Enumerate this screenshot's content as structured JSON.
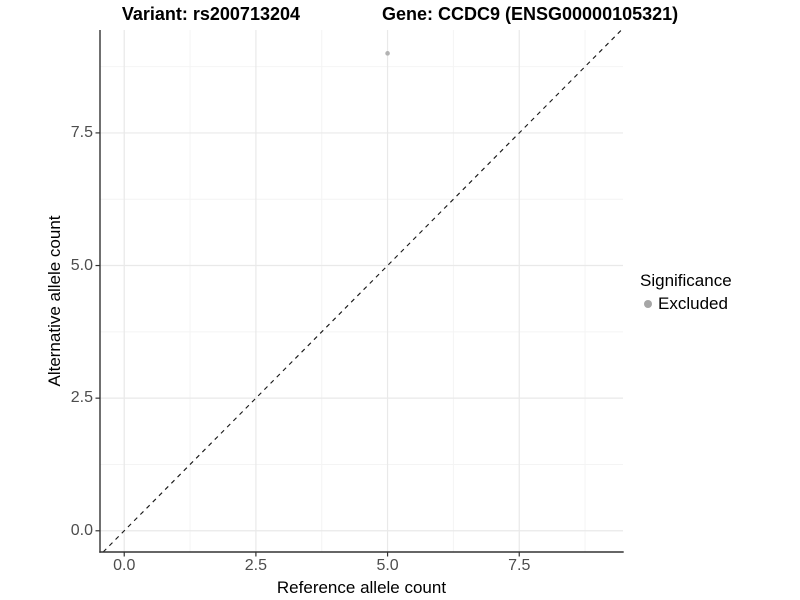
{
  "title": {
    "left": "Variant: rs200713204",
    "right": "Gene: CCDC9 (ENSG00000105321)"
  },
  "axes": {
    "x": {
      "label": "Reference allele count",
      "tick_labels": [
        "0.0",
        "2.5",
        "5.0",
        "7.5"
      ]
    },
    "y": {
      "label": "Alternative allele count",
      "tick_labels": [
        "0.0",
        "2.5",
        "5.0",
        "7.5"
      ]
    }
  },
  "legend": {
    "title": "Significance",
    "items": [
      {
        "label": "Excluded",
        "color": "#a6a6a6"
      }
    ]
  },
  "colors": {
    "point": "#b3b3b3",
    "grid_major": "#e9e9e9",
    "grid_minor": "#f4f4f4",
    "axis_line": "#333333",
    "tick_mark": "#333333",
    "tick_text": "#4d4d4d",
    "reference_line": "#1a1a1a"
  },
  "chart_data": {
    "type": "scatter",
    "title": "Variant: rs200713204   Gene: CCDC9 (ENSG00000105321)",
    "xlabel": "Reference allele count",
    "ylabel": "Alternative allele count",
    "series": [
      {
        "name": "Excluded",
        "color": "#b3b3b3",
        "points": [
          {
            "x": 5,
            "y": 9
          }
        ]
      }
    ],
    "reference_line": {
      "type": "identity",
      "equation": "y = x",
      "style": "dashed",
      "color": "#1a1a1a"
    },
    "xlim": [
      -0.46,
      9.47
    ],
    "ylim": [
      -0.4,
      9.44
    ],
    "xticks": [
      0,
      2.5,
      5,
      7.5
    ],
    "yticks": [
      0,
      2.5,
      5,
      7.5
    ],
    "minor_xticks": [
      1.25,
      3.75,
      6.25,
      8.75
    ],
    "minor_yticks": [
      1.25,
      3.75,
      6.25,
      8.75
    ],
    "grid": true,
    "legend_position": "right",
    "legend_title": "Significance"
  }
}
